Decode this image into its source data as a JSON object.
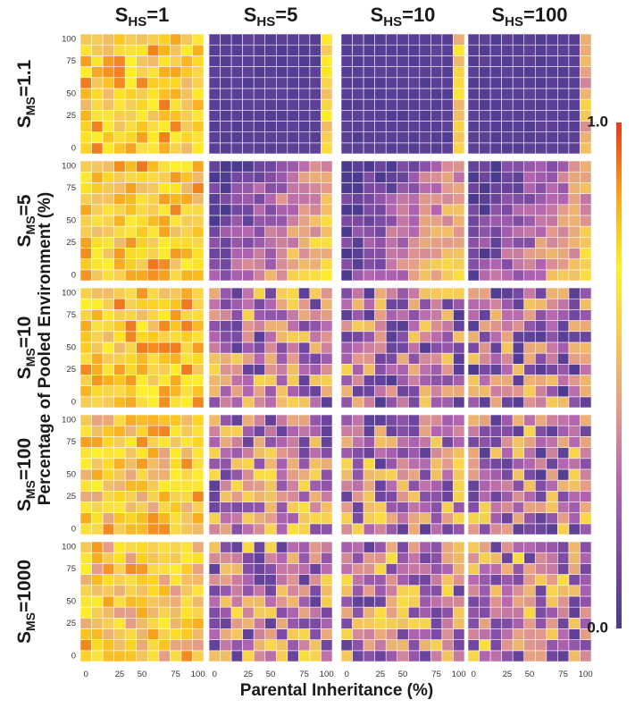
{
  "chart_data": {
    "type": "heatmap",
    "layout": "5 rows x 4 columns grid of heatmaps",
    "xlabel": "Parental Inheritance (%)",
    "ylabel": "Percentage of Pooled Environment (%)",
    "x_ticks": [
      "0",
      "25",
      "50",
      "75",
      "100"
    ],
    "y_ticks": [
      "0",
      "25",
      "50",
      "75",
      "100"
    ],
    "x_values": [
      0,
      10,
      20,
      30,
      40,
      50,
      60,
      70,
      80,
      90,
      100
    ],
    "y_values": [
      0,
      10,
      20,
      30,
      40,
      50,
      60,
      70,
      80,
      90,
      100
    ],
    "column_headers": [
      {
        "base": "S",
        "sub": "HS",
        "value": "=1"
      },
      {
        "base": "S",
        "sub": "HS",
        "value": "=5"
      },
      {
        "base": "S",
        "sub": "HS",
        "value": "=10"
      },
      {
        "base": "S",
        "sub": "HS",
        "value": "=100"
      }
    ],
    "row_headers": [
      {
        "base": "S",
        "sub": "MS",
        "value": "=1.1"
      },
      {
        "base": "S",
        "sub": "MS",
        "value": "=5"
      },
      {
        "base": "S",
        "sub": "MS",
        "value": "=10"
      },
      {
        "base": "S",
        "sub": "MS",
        "value": "=100"
      },
      {
        "base": "S",
        "sub": "MS",
        "value": "=1000"
      }
    ],
    "colorbar": {
      "min_label": "0.0",
      "max_label": "1.0",
      "range": [
        0,
        1
      ],
      "colors": [
        "#4b3a8f",
        "#7b4aa3",
        "#b365b0",
        "#e49a8a",
        "#f5c85a",
        "#ffef2a",
        "#f7a520",
        "#e23b1f"
      ]
    },
    "panels": [
      {
        "row": 0,
        "col": 0,
        "pattern": "random",
        "mean": 0.72,
        "spread": 0.2
      },
      {
        "row": 0,
        "col": 1,
        "pattern": "uniform-low",
        "mean": 0.04,
        "right_edge": 0.62
      },
      {
        "row": 0,
        "col": 2,
        "pattern": "uniform-low",
        "mean": 0.04,
        "right_edge": 0.58
      },
      {
        "row": 0,
        "col": 3,
        "pattern": "uniform-low",
        "mean": 0.04,
        "right_edge": 0.5
      },
      {
        "row": 1,
        "col": 0,
        "pattern": "random",
        "mean": 0.72,
        "spread": 0.2
      },
      {
        "row": 1,
        "col": 1,
        "pattern": "gradient",
        "low": 0.02,
        "high": 0.62,
        "spread": 0.28
      },
      {
        "row": 1,
        "col": 2,
        "pattern": "gradient",
        "low": 0.02,
        "high": 0.56,
        "spread": 0.26
      },
      {
        "row": 1,
        "col": 3,
        "pattern": "gradient",
        "low": 0.02,
        "high": 0.55,
        "spread": 0.26
      },
      {
        "row": 2,
        "col": 0,
        "pattern": "random",
        "mean": 0.72,
        "spread": 0.2
      },
      {
        "row": 2,
        "col": 1,
        "pattern": "random",
        "mean": 0.34,
        "spread": 0.3
      },
      {
        "row": 2,
        "col": 2,
        "pattern": "random",
        "mean": 0.31,
        "spread": 0.3
      },
      {
        "row": 2,
        "col": 3,
        "pattern": "random",
        "mean": 0.3,
        "spread": 0.3
      },
      {
        "row": 3,
        "col": 0,
        "pattern": "random",
        "mean": 0.68,
        "spread": 0.22
      },
      {
        "row": 3,
        "col": 1,
        "pattern": "random",
        "mean": 0.36,
        "spread": 0.3
      },
      {
        "row": 3,
        "col": 2,
        "pattern": "random",
        "mean": 0.34,
        "spread": 0.3
      },
      {
        "row": 3,
        "col": 3,
        "pattern": "random",
        "mean": 0.33,
        "spread": 0.3
      },
      {
        "row": 4,
        "col": 0,
        "pattern": "random",
        "mean": 0.66,
        "spread": 0.24
      },
      {
        "row": 4,
        "col": 1,
        "pattern": "random",
        "mean": 0.36,
        "spread": 0.3
      },
      {
        "row": 4,
        "col": 2,
        "pattern": "random",
        "mean": 0.35,
        "spread": 0.3
      },
      {
        "row": 4,
        "col": 3,
        "pattern": "random",
        "mean": 0.36,
        "spread": 0.3
      }
    ]
  }
}
